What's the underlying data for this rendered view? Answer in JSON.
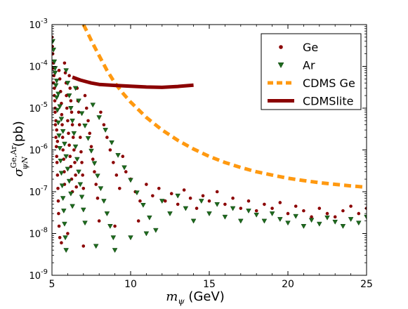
{
  "chart_data": {
    "type": "scatter",
    "title": "",
    "xlabel": "m_ψ (GeV)",
    "xlabel_parts": {
      "symbol": "m",
      "sub": "ψ",
      "unit": "(GeV)"
    },
    "ylabel": "σ_ψN^Ge,Ar (pb)",
    "ylabel_parts": {
      "symbol": "σ",
      "sup": "Ge,Ar",
      "sub": "ψN",
      "unit": "(pb)"
    },
    "xlim": [
      5,
      25
    ],
    "ylim": [
      1e-09,
      0.001
    ],
    "yscale": "log",
    "grid": false,
    "legend_position": "top-right",
    "x_ticks": [
      {
        "value": 5,
        "label": "5"
      },
      {
        "value": 10,
        "label": "10"
      },
      {
        "value": 15,
        "label": "15"
      },
      {
        "value": 20,
        "label": "20"
      },
      {
        "value": 25,
        "label": "25"
      }
    ],
    "y_ticks": [
      {
        "value": 1e-09,
        "base": "10",
        "exp": "-9"
      },
      {
        "value": 1e-08,
        "base": "10",
        "exp": "-8"
      },
      {
        "value": 1e-07,
        "base": "10",
        "exp": "-7"
      },
      {
        "value": 1e-06,
        "base": "10",
        "exp": "-6"
      },
      {
        "value": 1e-05,
        "base": "10",
        "exp": "-5"
      },
      {
        "value": 0.0001,
        "base": "10",
        "exp": "-4"
      },
      {
        "value": 0.001,
        "base": "10",
        "exp": "-3"
      }
    ],
    "series": [
      {
        "name": "Ge",
        "kind": "scatter",
        "marker": "circle",
        "color": "#8b0000",
        "points": [
          [
            5.0,
            0.0005
          ],
          [
            5.02,
            0.0003
          ],
          [
            5.05,
            0.0002
          ],
          [
            5.1,
            0.00012
          ],
          [
            5.12,
            6e-05
          ],
          [
            5.15,
            3e-05
          ],
          [
            5.18,
            1.5e-05
          ],
          [
            5.2,
            8e-06
          ],
          [
            5.22,
            4e-06
          ],
          [
            5.25,
            2e-06
          ],
          [
            5.28,
            1.2e-06
          ],
          [
            5.3,
            7e-07
          ],
          [
            5.32,
            5e-07
          ],
          [
            5.35,
            2.5e-07
          ],
          [
            5.38,
            1.2e-07
          ],
          [
            5.4,
            6e-08
          ],
          [
            5.42,
            3e-08
          ],
          [
            5.45,
            1.5e-08
          ],
          [
            5.05,
            9e-05
          ],
          [
            5.1,
            4e-05
          ],
          [
            5.15,
            2e-05
          ],
          [
            5.2,
            1e-05
          ],
          [
            5.25,
            5e-06
          ],
          [
            5.3,
            3e-06
          ],
          [
            5.35,
            1.6e-06
          ],
          [
            5.45,
            8e-05
          ],
          [
            5.5,
            5e-05
          ],
          [
            5.55,
            2.5e-05
          ],
          [
            5.6,
            1.3e-05
          ],
          [
            5.62,
            7e-06
          ],
          [
            5.65,
            4e-06
          ],
          [
            5.68,
            2e-06
          ],
          [
            5.7,
            1e-06
          ],
          [
            5.75,
            6e-07
          ],
          [
            5.78,
            3e-07
          ],
          [
            5.8,
            1.5e-07
          ],
          [
            5.8,
            0.00012
          ],
          [
            5.85,
            7e-05
          ],
          [
            5.9,
            4e-05
          ],
          [
            5.92,
            2e-05
          ],
          [
            5.95,
            1e-05
          ],
          [
            6.0,
            5e-06
          ],
          [
            6.05,
            2.5e-06
          ],
          [
            6.1,
            1.3e-06
          ],
          [
            6.15,
            7e-07
          ],
          [
            6.2,
            4e-07
          ],
          [
            6.25,
            2e-07
          ],
          [
            6.3,
            1e-07
          ],
          [
            6.1,
            6e-05
          ],
          [
            6.15,
            3e-05
          ],
          [
            6.2,
            1.5e-05
          ],
          [
            6.25,
            8e-06
          ],
          [
            6.3,
            4e-06
          ],
          [
            6.35,
            2e-06
          ],
          [
            6.4,
            1e-06
          ],
          [
            6.45,
            5e-07
          ],
          [
            6.5,
            2.5e-07
          ],
          [
            6.55,
            1.3e-07
          ],
          [
            6.6,
            3e-05
          ],
          [
            6.65,
            1.5e-05
          ],
          [
            6.7,
            8e-06
          ],
          [
            6.75,
            4e-06
          ],
          [
            6.8,
            2e-06
          ],
          [
            6.85,
            9e-07
          ],
          [
            6.9,
            5e-07
          ],
          [
            6.95,
            2.5e-07
          ],
          [
            7.0,
            1.2e-07
          ],
          [
            7.1,
            2e-05
          ],
          [
            7.2,
            1e-05
          ],
          [
            7.3,
            5e-06
          ],
          [
            7.4,
            2.5e-06
          ],
          [
            7.5,
            1.2e-06
          ],
          [
            7.6,
            6e-07
          ],
          [
            7.7,
            3e-07
          ],
          [
            7.8,
            1.5e-07
          ],
          [
            7.9,
            7e-08
          ],
          [
            8.1,
            8e-06
          ],
          [
            8.3,
            4e-06
          ],
          [
            8.5,
            2e-06
          ],
          [
            8.7,
            1e-06
          ],
          [
            8.9,
            5e-07
          ],
          [
            9.1,
            2.5e-07
          ],
          [
            9.3,
            1.2e-07
          ],
          [
            9.5,
            7e-07
          ],
          [
            9.7,
            3e-07
          ],
          [
            10.0,
            2e-07
          ],
          [
            10.3,
            1e-07
          ],
          [
            10.6,
            6e-08
          ],
          [
            11.0,
            1.5e-07
          ],
          [
            11.4,
            8e-08
          ],
          [
            11.8,
            1.2e-07
          ],
          [
            12.2,
            6e-08
          ],
          [
            12.6,
            9e-08
          ],
          [
            13.0,
            5e-08
          ],
          [
            13.4,
            1.1e-07
          ],
          [
            13.8,
            7e-08
          ],
          [
            14.2,
            4e-08
          ],
          [
            14.6,
            8e-08
          ],
          [
            15.0,
            6e-08
          ],
          [
            15.5,
            1e-07
          ],
          [
            16.0,
            5e-08
          ],
          [
            16.5,
            7e-08
          ],
          [
            17.0,
            4e-08
          ],
          [
            17.5,
            6e-08
          ],
          [
            18.0,
            3.5e-08
          ],
          [
            18.5,
            5e-08
          ],
          [
            19.0,
            4e-08
          ],
          [
            19.5,
            5.5e-08
          ],
          [
            20.0,
            3e-08
          ],
          [
            20.5,
            4.5e-08
          ],
          [
            21.0,
            3.5e-08
          ],
          [
            21.5,
            2.5e-08
          ],
          [
            22.0,
            4e-08
          ],
          [
            22.5,
            3e-08
          ],
          [
            23.0,
            2.5e-08
          ],
          [
            23.5,
            3.5e-08
          ],
          [
            24.0,
            4.5e-08
          ],
          [
            24.5,
            3e-08
          ],
          [
            25.0,
            4e-08
          ],
          [
            6.0,
            1e-08
          ],
          [
            5.5,
            8e-09
          ],
          [
            5.6,
            6e-09
          ],
          [
            7.0,
            5e-09
          ],
          [
            8.0,
            2e-08
          ],
          [
            9.0,
            1.5e-08
          ],
          [
            10.5,
            2e-08
          ]
        ]
      },
      {
        "name": "Ar",
        "kind": "scatter",
        "marker": "triangle-down",
        "color": "#1e6b1e",
        "points": [
          [
            5.05,
            0.0004
          ],
          [
            5.1,
            0.00025
          ],
          [
            5.15,
            0.00013
          ],
          [
            5.2,
            7e-05
          ],
          [
            5.25,
            3.5e-05
          ],
          [
            5.3,
            1.8e-05
          ],
          [
            5.35,
            9e-06
          ],
          [
            5.4,
            4.5e-06
          ],
          [
            5.45,
            2.2e-06
          ],
          [
            5.5,
            1.1e-06
          ],
          [
            5.55,
            5.5e-07
          ],
          [
            5.6,
            2.8e-07
          ],
          [
            5.65,
            1.4e-07
          ],
          [
            5.7,
            7e-08
          ],
          [
            5.75,
            3.5e-08
          ],
          [
            5.8,
            1.7e-08
          ],
          [
            5.85,
            8e-09
          ],
          [
            5.9,
            4e-09
          ],
          [
            5.2,
            9e-05
          ],
          [
            5.3,
            4.5e-05
          ],
          [
            5.4,
            2.2e-05
          ],
          [
            5.5,
            1.1e-05
          ],
          [
            5.6,
            5.5e-06
          ],
          [
            5.7,
            2.8e-06
          ],
          [
            5.8,
            1.4e-06
          ],
          [
            5.9,
            7e-07
          ],
          [
            6.0,
            3.5e-07
          ],
          [
            6.1,
            1.8e-07
          ],
          [
            6.2,
            9e-08
          ],
          [
            6.3,
            4.5e-08
          ],
          [
            5.9,
            8e-05
          ],
          [
            6.0,
            4e-05
          ],
          [
            6.1,
            2e-05
          ],
          [
            6.2,
            1e-05
          ],
          [
            6.3,
            5e-06
          ],
          [
            6.4,
            2.5e-06
          ],
          [
            6.5,
            1.2e-06
          ],
          [
            6.6,
            6e-07
          ],
          [
            6.7,
            3e-07
          ],
          [
            6.8,
            1.5e-07
          ],
          [
            6.9,
            7.5e-08
          ],
          [
            7.0,
            3.7e-08
          ],
          [
            7.1,
            1.8e-08
          ],
          [
            6.5,
            3e-05
          ],
          [
            6.7,
            1.5e-05
          ],
          [
            6.9,
            7.5e-06
          ],
          [
            7.1,
            3.8e-06
          ],
          [
            7.3,
            1.9e-06
          ],
          [
            7.5,
            9.5e-07
          ],
          [
            7.7,
            4.8e-07
          ],
          [
            7.9,
            2.4e-07
          ],
          [
            8.1,
            1.2e-07
          ],
          [
            8.3,
            6e-08
          ],
          [
            8.5,
            3e-08
          ],
          [
            8.7,
            1.5e-08
          ],
          [
            8.9,
            8e-09
          ],
          [
            7.6,
            1.2e-05
          ],
          [
            8.0,
            6e-06
          ],
          [
            8.4,
            3e-06
          ],
          [
            8.8,
            1.5e-06
          ],
          [
            9.2,
            7.5e-07
          ],
          [
            9.6,
            3.8e-07
          ],
          [
            10.0,
            1.9e-07
          ],
          [
            10.4,
            9.5e-08
          ],
          [
            10.8,
            4.8e-08
          ],
          [
            11.2,
            2.4e-08
          ],
          [
            11.6,
            1.2e-08
          ],
          [
            12.0,
            6e-08
          ],
          [
            12.5,
            3e-08
          ],
          [
            13.0,
            8e-08
          ],
          [
            13.5,
            4e-08
          ],
          [
            14.0,
            2e-08
          ],
          [
            14.5,
            6e-08
          ],
          [
            15.0,
            3e-08
          ],
          [
            15.5,
            5e-08
          ],
          [
            16.0,
            2.5e-08
          ],
          [
            16.5,
            4e-08
          ],
          [
            17.0,
            2e-08
          ],
          [
            17.5,
            3.5e-08
          ],
          [
            18.0,
            2.8e-08
          ],
          [
            18.5,
            2e-08
          ],
          [
            19.0,
            3e-08
          ],
          [
            19.5,
            2.2e-08
          ],
          [
            20.0,
            1.8e-08
          ],
          [
            20.5,
            2.6e-08
          ],
          [
            21.0,
            1.5e-08
          ],
          [
            21.5,
            2.1e-08
          ],
          [
            22.0,
            1.7e-08
          ],
          [
            22.5,
            2.4e-08
          ],
          [
            23.0,
            1.9e-08
          ],
          [
            23.5,
            1.5e-08
          ],
          [
            24.0,
            2.2e-08
          ],
          [
            24.5,
            1.8e-08
          ],
          [
            25.0,
            2.5e-08
          ],
          [
            9.0,
            4e-09
          ],
          [
            10.0,
            8e-09
          ],
          [
            7.8,
            5e-09
          ],
          [
            11.0,
            1e-08
          ]
        ]
      },
      {
        "name": "CDMS Ge",
        "kind": "line",
        "style": "dashed",
        "color": "#ff9910",
        "points": [
          [
            7.0,
            0.001
          ],
          [
            7.3,
            0.0006
          ],
          [
            7.6,
            0.00035
          ],
          [
            8.0,
            0.00018
          ],
          [
            8.5,
            8e-05
          ],
          [
            9.0,
            4e-05
          ],
          [
            9.5,
            2.3e-05
          ],
          [
            10.0,
            1.4e-05
          ],
          [
            11.0,
            6e-06
          ],
          [
            12.0,
            3e-06
          ],
          [
            13.0,
            1.7e-06
          ],
          [
            14.0,
            1.05e-06
          ],
          [
            15.0,
            7e-07
          ],
          [
            16.0,
            5e-07
          ],
          [
            17.0,
            3.8e-07
          ],
          [
            18.0,
            3e-07
          ],
          [
            19.0,
            2.5e-07
          ],
          [
            20.0,
            2.1e-07
          ],
          [
            21.0,
            1.85e-07
          ],
          [
            22.0,
            1.65e-07
          ],
          [
            23.0,
            1.5e-07
          ],
          [
            24.0,
            1.38e-07
          ],
          [
            25.0,
            1.28e-07
          ]
        ]
      },
      {
        "name": "CDMSlite",
        "kind": "line",
        "style": "solid",
        "color": "#8b0000",
        "points": [
          [
            6.3,
            5.5e-05
          ],
          [
            6.8,
            4.7e-05
          ],
          [
            7.5,
            4e-05
          ],
          [
            8.0,
            3.7e-05
          ],
          [
            9.0,
            3.5e-05
          ],
          [
            10.0,
            3.35e-05
          ],
          [
            11.0,
            3.2e-05
          ],
          [
            12.0,
            3.15e-05
          ],
          [
            13.0,
            3.3e-05
          ],
          [
            14.0,
            3.55e-05
          ]
        ]
      }
    ]
  }
}
